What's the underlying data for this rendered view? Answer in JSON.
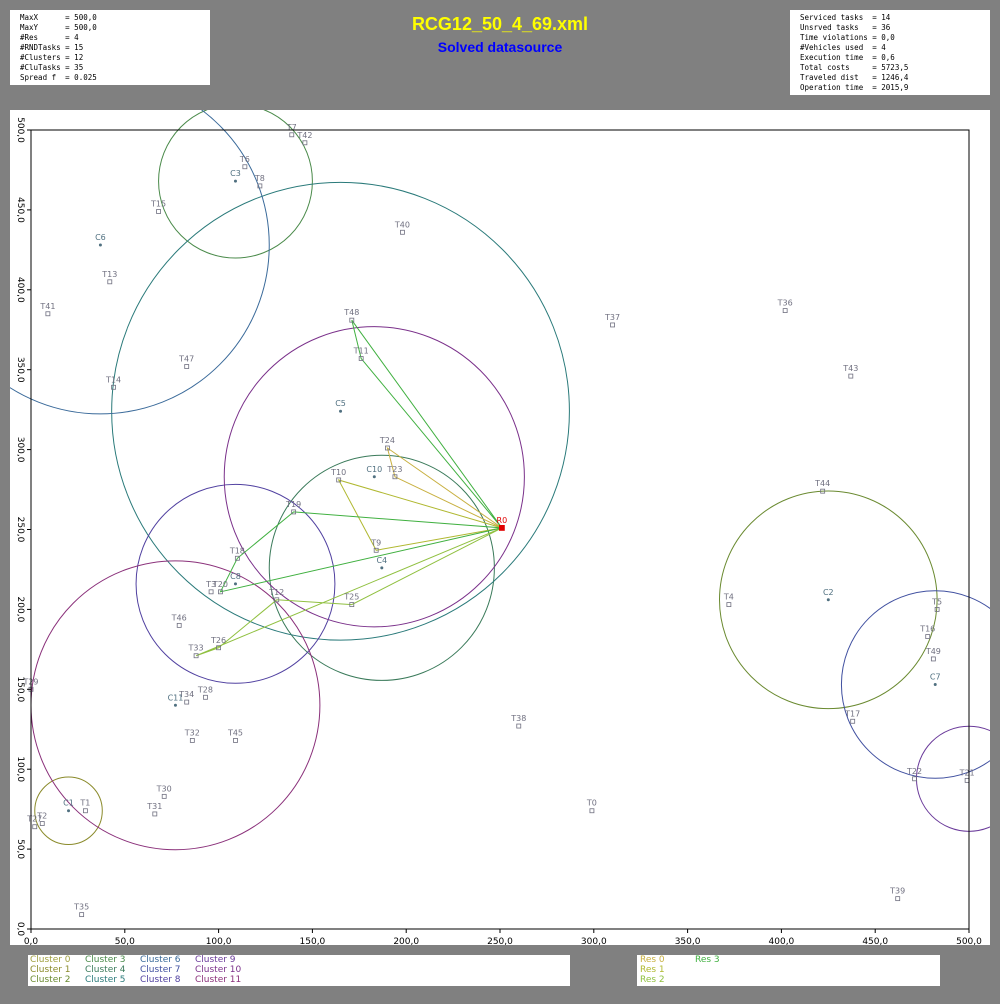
{
  "header": {
    "title": "RCG12_50_4_69.xml",
    "subtitle": "Solved datasource"
  },
  "info_left": [
    "MaxX      = 500,0",
    "MaxY      = 500,0",
    "#Res      = 4",
    "#RNDTasks = 15",
    "#Clusters = 12",
    "#CluTasks = 35",
    "Spread f  = 0.025"
  ],
  "info_right": [
    "Serviced tasks  = 14",
    "Unsrved tasks   = 36",
    "Time violations = 0,0",
    "#Vehicles used  = 4",
    "Execution time  = 0,6",
    "Total costs     = 5723,5",
    "Traveled dist   = 1246,4",
    "Operation time  = 2015,9"
  ],
  "chart_data": {
    "type": "scatter",
    "xlim": [
      0,
      500
    ],
    "ylim": [
      0,
      500
    ],
    "xticks": [
      {
        "value": 0,
        "label": "0,0"
      },
      {
        "value": 50,
        "label": "50,0"
      },
      {
        "value": 100,
        "label": "100,0"
      },
      {
        "value": 150,
        "label": "150,0"
      },
      {
        "value": 200,
        "label": "200,0"
      },
      {
        "value": 250,
        "label": "250,0"
      },
      {
        "value": 300,
        "label": "300,0"
      },
      {
        "value": 350,
        "label": "350,0"
      },
      {
        "value": 400,
        "label": "400,0"
      },
      {
        "value": 450,
        "label": "450,0"
      },
      {
        "value": 500,
        "label": "500,0"
      }
    ],
    "yticks": [
      {
        "value": 0,
        "label": "0,0"
      },
      {
        "value": 50,
        "label": "50,0"
      },
      {
        "value": 100,
        "label": "100,0"
      },
      {
        "value": 150,
        "label": "150,0"
      },
      {
        "value": 200,
        "label": "200,0"
      },
      {
        "value": 250,
        "label": "250,0"
      },
      {
        "value": 300,
        "label": "300,0"
      },
      {
        "value": 350,
        "label": "350,0"
      },
      {
        "value": 400,
        "label": "400,0"
      },
      {
        "value": 450,
        "label": "450,0"
      },
      {
        "value": 500,
        "label": "500,0"
      }
    ],
    "clusters": [
      {
        "name": "Cluster 0",
        "color": "#a0a040"
      },
      {
        "name": "Cluster 1",
        "color": "#8a8a2a",
        "x": 20,
        "y": 74,
        "r": 18
      },
      {
        "name": "Cluster 2",
        "color": "#6a8a30",
        "x": 425,
        "y": 206,
        "r": 58
      },
      {
        "name": "Cluster 3",
        "color": "#4a8a4a",
        "x": 109,
        "y": 468,
        "r": 41
      },
      {
        "name": "Cluster 4",
        "color": "#3a7a5a",
        "x": 187,
        "y": 226,
        "r": 60
      },
      {
        "name": "Cluster 5",
        "color": "#2a7a7a",
        "x": 165,
        "y": 324,
        "r": 122
      },
      {
        "name": "Cluster 6",
        "color": "#3a6a9a",
        "x": 37,
        "y": 428,
        "r": 90
      },
      {
        "name": "Cluster 7",
        "color": "#4050a0",
        "x": 482,
        "y": 153,
        "r": 50
      },
      {
        "name": "Cluster 8",
        "color": "#5040a0",
        "x": 109,
        "y": 216,
        "r": 53
      },
      {
        "name": "Cluster 9",
        "color": "#6a3a9a",
        "x": 500,
        "y": 94,
        "r": 28
      },
      {
        "name": "Cluster 10",
        "color": "#7a308a",
        "x": 183,
        "y": 283,
        "r": 80
      },
      {
        "name": "Cluster 11",
        "color": "#8a307a",
        "x": 77,
        "y": 140,
        "r": 77
      }
    ],
    "routes": [
      {
        "name": "Res 0",
        "color": "#c8b040",
        "x": [
          251,
          190,
          194,
          251
        ],
        "y": [
          251,
          301,
          283,
          251
        ]
      },
      {
        "name": "Res 1",
        "color": "#b0b830",
        "x": [
          251,
          164,
          184,
          251
        ],
        "y": [
          251,
          281,
          237,
          251
        ]
      },
      {
        "name": "Res 2",
        "color": "#90c040",
        "x": [
          251,
          171,
          131,
          100,
          88,
          251
        ],
        "y": [
          251,
          203,
          206,
          176,
          171,
          251
        ]
      },
      {
        "name": "Res 3",
        "color": "#40b040",
        "x": [
          251,
          171,
          176,
          251,
          140,
          110,
          101,
          251
        ],
        "y": [
          251,
          381,
          357,
          251,
          261,
          232,
          211,
          251
        ]
      }
    ],
    "point_groups": [
      {
        "marker": "square",
        "color": "#707080",
        "labels": [
          "T7",
          "T42",
          "T6",
          "T8",
          "T15",
          "T40",
          "T13",
          "T41",
          "T48",
          "T37",
          "T36",
          "T11",
          "T47",
          "T43",
          "T14",
          "T24",
          "T23",
          "T10",
          "T44",
          "T19",
          "T9",
          "T18",
          "T3",
          "T20",
          "T12",
          "T25",
          "T4",
          "T5",
          "T46",
          "T16",
          "T26",
          "T33",
          "T49",
          "T29",
          "T34",
          "T28",
          "T17",
          "T38",
          "T32",
          "T45",
          "T22",
          "T21",
          "T30",
          "T31",
          "T1",
          "T0",
          "T2",
          "T27",
          "T39",
          "T35"
        ],
        "x": [
          139,
          146,
          114,
          122,
          68,
          198,
          42,
          9,
          171,
          310,
          402,
          176,
          83,
          437,
          44,
          190,
          194,
          164,
          422,
          140,
          184,
          110,
          96,
          101,
          131,
          171,
          372,
          483,
          79,
          478,
          100,
          88,
          481,
          0,
          83,
          93,
          438,
          260,
          86,
          109,
          471,
          499,
          71,
          66,
          29,
          299,
          6,
          2,
          462,
          27
        ],
        "y": [
          497,
          492,
          477,
          465,
          449,
          436,
          405,
          385,
          381,
          378,
          387,
          357,
          352,
          346,
          339,
          301,
          283,
          281,
          274,
          261,
          237,
          232,
          211,
          211,
          206,
          203,
          203,
          200,
          190,
          183,
          176,
          171,
          169,
          150,
          142,
          145,
          130,
          127,
          118,
          118,
          94,
          93,
          83,
          72,
          74,
          74,
          66,
          64,
          19,
          9
        ]
      },
      {
        "marker": "dot",
        "color": "#507080",
        "labels": [
          "C1",
          "C2",
          "C3",
          "C4",
          "C5",
          "C6",
          "C7",
          "C8",
          "C10",
          "C11"
        ],
        "x": [
          20,
          425,
          109,
          187,
          165,
          37,
          482,
          109,
          183,
          77
        ],
        "y": [
          74,
          206,
          468,
          226,
          324,
          428,
          153,
          216,
          283,
          140
        ]
      },
      {
        "marker": "reservoir",
        "color": "#e00000",
        "labels": [
          "R0"
        ],
        "x": [
          251
        ],
        "y": [
          251
        ]
      }
    ]
  }
}
